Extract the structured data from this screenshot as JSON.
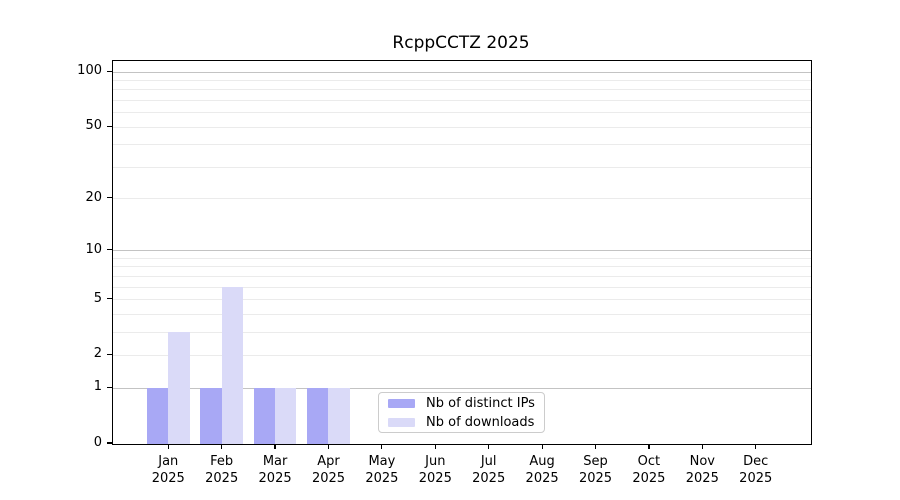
{
  "chart_data": {
    "type": "bar",
    "title": "RcppCCTZ 2025",
    "categories": [
      "Jan",
      "Feb",
      "Mar",
      "Apr",
      "May",
      "Jun",
      "Jul",
      "Aug",
      "Sep",
      "Oct",
      "Nov",
      "Dec"
    ],
    "year_label": "2025",
    "series": [
      {
        "name": "Nb of distinct IPs",
        "color": "#a8a8f5",
        "values": [
          1,
          1,
          1,
          1,
          0,
          0,
          0,
          0,
          0,
          0,
          0,
          0
        ]
      },
      {
        "name": "Nb of downloads",
        "color": "#dadaf8",
        "values": [
          3,
          6,
          1,
          1,
          0,
          0,
          0,
          0,
          0,
          0,
          0,
          0
        ]
      }
    ],
    "yaxis": {
      "scale": "log1p",
      "ticks": [
        0,
        1,
        2,
        5,
        10,
        20,
        50,
        100
      ],
      "major_gridlines": [
        1,
        10,
        100
      ],
      "minor_gridlines": [
        2,
        3,
        4,
        5,
        6,
        7,
        8,
        9,
        20,
        30,
        40,
        50,
        60,
        70,
        80,
        90
      ],
      "top_value": 115,
      "ylim": [
        0,
        115
      ]
    },
    "xlabel": "",
    "ylabel": "",
    "grid": true,
    "legend_position": "lower-center",
    "colors": {
      "axis": "#000000",
      "major_grid": "#c3c3c3",
      "minor_grid": "#ebebeb",
      "background": "#ffffff"
    }
  }
}
